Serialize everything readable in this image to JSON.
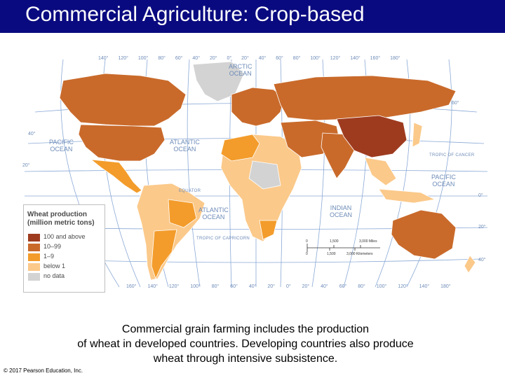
{
  "slide": {
    "title": "Commercial Agriculture: Crop-based",
    "caption": [
      "Commercial grain farming includes the production",
      "of wheat in developed countries. Developing countries also produce",
      "wheat through intensive subsistence."
    ],
    "copyright": "© 2017 Pearson Education, Inc."
  },
  "map": {
    "ocean_labels": {
      "arctic": [
        "ARCTIC",
        "OCEAN"
      ],
      "pacific_w": [
        "PACIFIC",
        "OCEAN"
      ],
      "atlantic_n": [
        "ATLANTIC",
        "OCEAN"
      ],
      "atlantic_s": [
        "ATLANTIC",
        "OCEAN"
      ],
      "indian": [
        "INDIAN",
        "OCEAN"
      ],
      "pacific_e": [
        "PACIFIC",
        "OCEAN"
      ]
    },
    "lines": {
      "equator": "EQUATOR",
      "tropic_cancer": "TROPIC OF CANCER",
      "tropic_capricorn": "TROPIC OF CAPRICORN"
    },
    "lat_labels": {
      "n60": "60°",
      "n40": "40°",
      "n20": "20°",
      "eq": "0°",
      "s20": "20°",
      "s40": "40°"
    },
    "top_lon_labels": [
      "140°",
      "120°",
      "100°",
      "80°",
      "60°",
      "40°",
      "20°",
      "0°",
      "20°",
      "40°",
      "60°",
      "80°",
      "100°",
      "120°",
      "140°",
      "160°",
      "180°"
    ],
    "bottom_lon_labels": [
      "160°",
      "140°",
      "120°",
      "100°",
      "80°",
      "60°",
      "40°",
      "20°",
      "0°",
      "20°",
      "40°",
      "60°",
      "80°",
      "100°",
      "120°",
      "140°",
      "180°"
    ],
    "scale": {
      "miles_label": "3,000 Miles",
      "km_label": "3,000 Kilometers",
      "mid_miles": "1,500",
      "mid_km": "1,500",
      "zero": "0"
    }
  },
  "legend": {
    "title": [
      "Wheat production",
      "(million metric tons)"
    ],
    "items": [
      {
        "label": "100 and above",
        "color": "#9e3b1f"
      },
      {
        "label": "10–99",
        "color": "#c96a2b"
      },
      {
        "label": "1–9",
        "color": "#f39c2b"
      },
      {
        "label": "below 1",
        "color": "#fbc98a"
      },
      {
        "label": "no data",
        "color": "#d3d3d3"
      }
    ]
  },
  "colors": {
    "title_bar": "#0a0a80",
    "ocean_line": "#8aa9d6",
    "ocean": "#ffffff"
  }
}
